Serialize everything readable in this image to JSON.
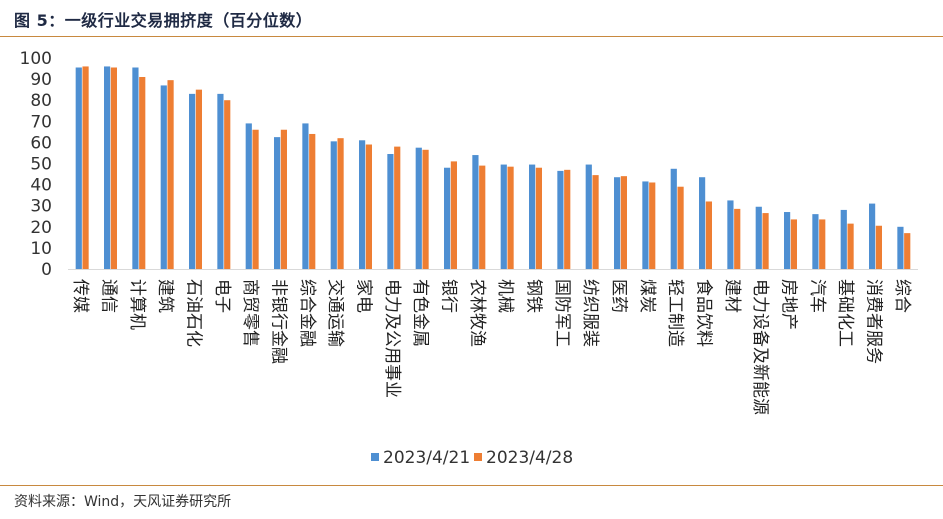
{
  "figure": {
    "title": "图 5：一级行业交易拥挤度（百分位数）",
    "source": "资料来源：Wind，天风证券研究所"
  },
  "colors": {
    "series_a": "#4e8fd2",
    "series_b": "#ee7e33",
    "rule": "#c8893f"
  },
  "chart_data": {
    "type": "bar",
    "title": "",
    "xlabel": "",
    "ylabel": "",
    "ylim": [
      0,
      100
    ],
    "yticks": [
      0,
      10,
      20,
      30,
      40,
      50,
      60,
      70,
      80,
      90,
      100
    ],
    "grid": false,
    "legend_position": "bottom",
    "categories": [
      "传媒",
      "通信",
      "计算机",
      "建筑",
      "石油石化",
      "电子",
      "商贸零售",
      "非银行金融",
      "综合金融",
      "交通运输",
      "家电",
      "电力及公用事业",
      "有色金属",
      "银行",
      "农林牧渔",
      "机械",
      "钢铁",
      "国防军工",
      "纺织服装",
      "医药",
      "煤炭",
      "轻工制造",
      "食品饮料",
      "建材",
      "电力设备及新能源",
      "房地产",
      "汽车",
      "基础化工",
      "消费者服务",
      "综合"
    ],
    "series": [
      {
        "name": "2023/4/21",
        "values": [
          95.5,
          96,
          95.5,
          87,
          83,
          83,
          69,
          62.5,
          69,
          60.5,
          61,
          54.5,
          57.5,
          48,
          54,
          49.5,
          49.5,
          46.5,
          49.5,
          43.5,
          41.5,
          47.5,
          43.5,
          32.5,
          29.5,
          27,
          26,
          28,
          31,
          20
        ]
      },
      {
        "name": "2023/4/28",
        "values": [
          96,
          95.5,
          91,
          89.5,
          85,
          80,
          66,
          66,
          64,
          62,
          59,
          58,
          56.5,
          51,
          49,
          48.5,
          48,
          47,
          44.5,
          44,
          41,
          39,
          32,
          28.5,
          26.5,
          23.5,
          23.5,
          21.5,
          20.5,
          17
        ]
      }
    ]
  }
}
